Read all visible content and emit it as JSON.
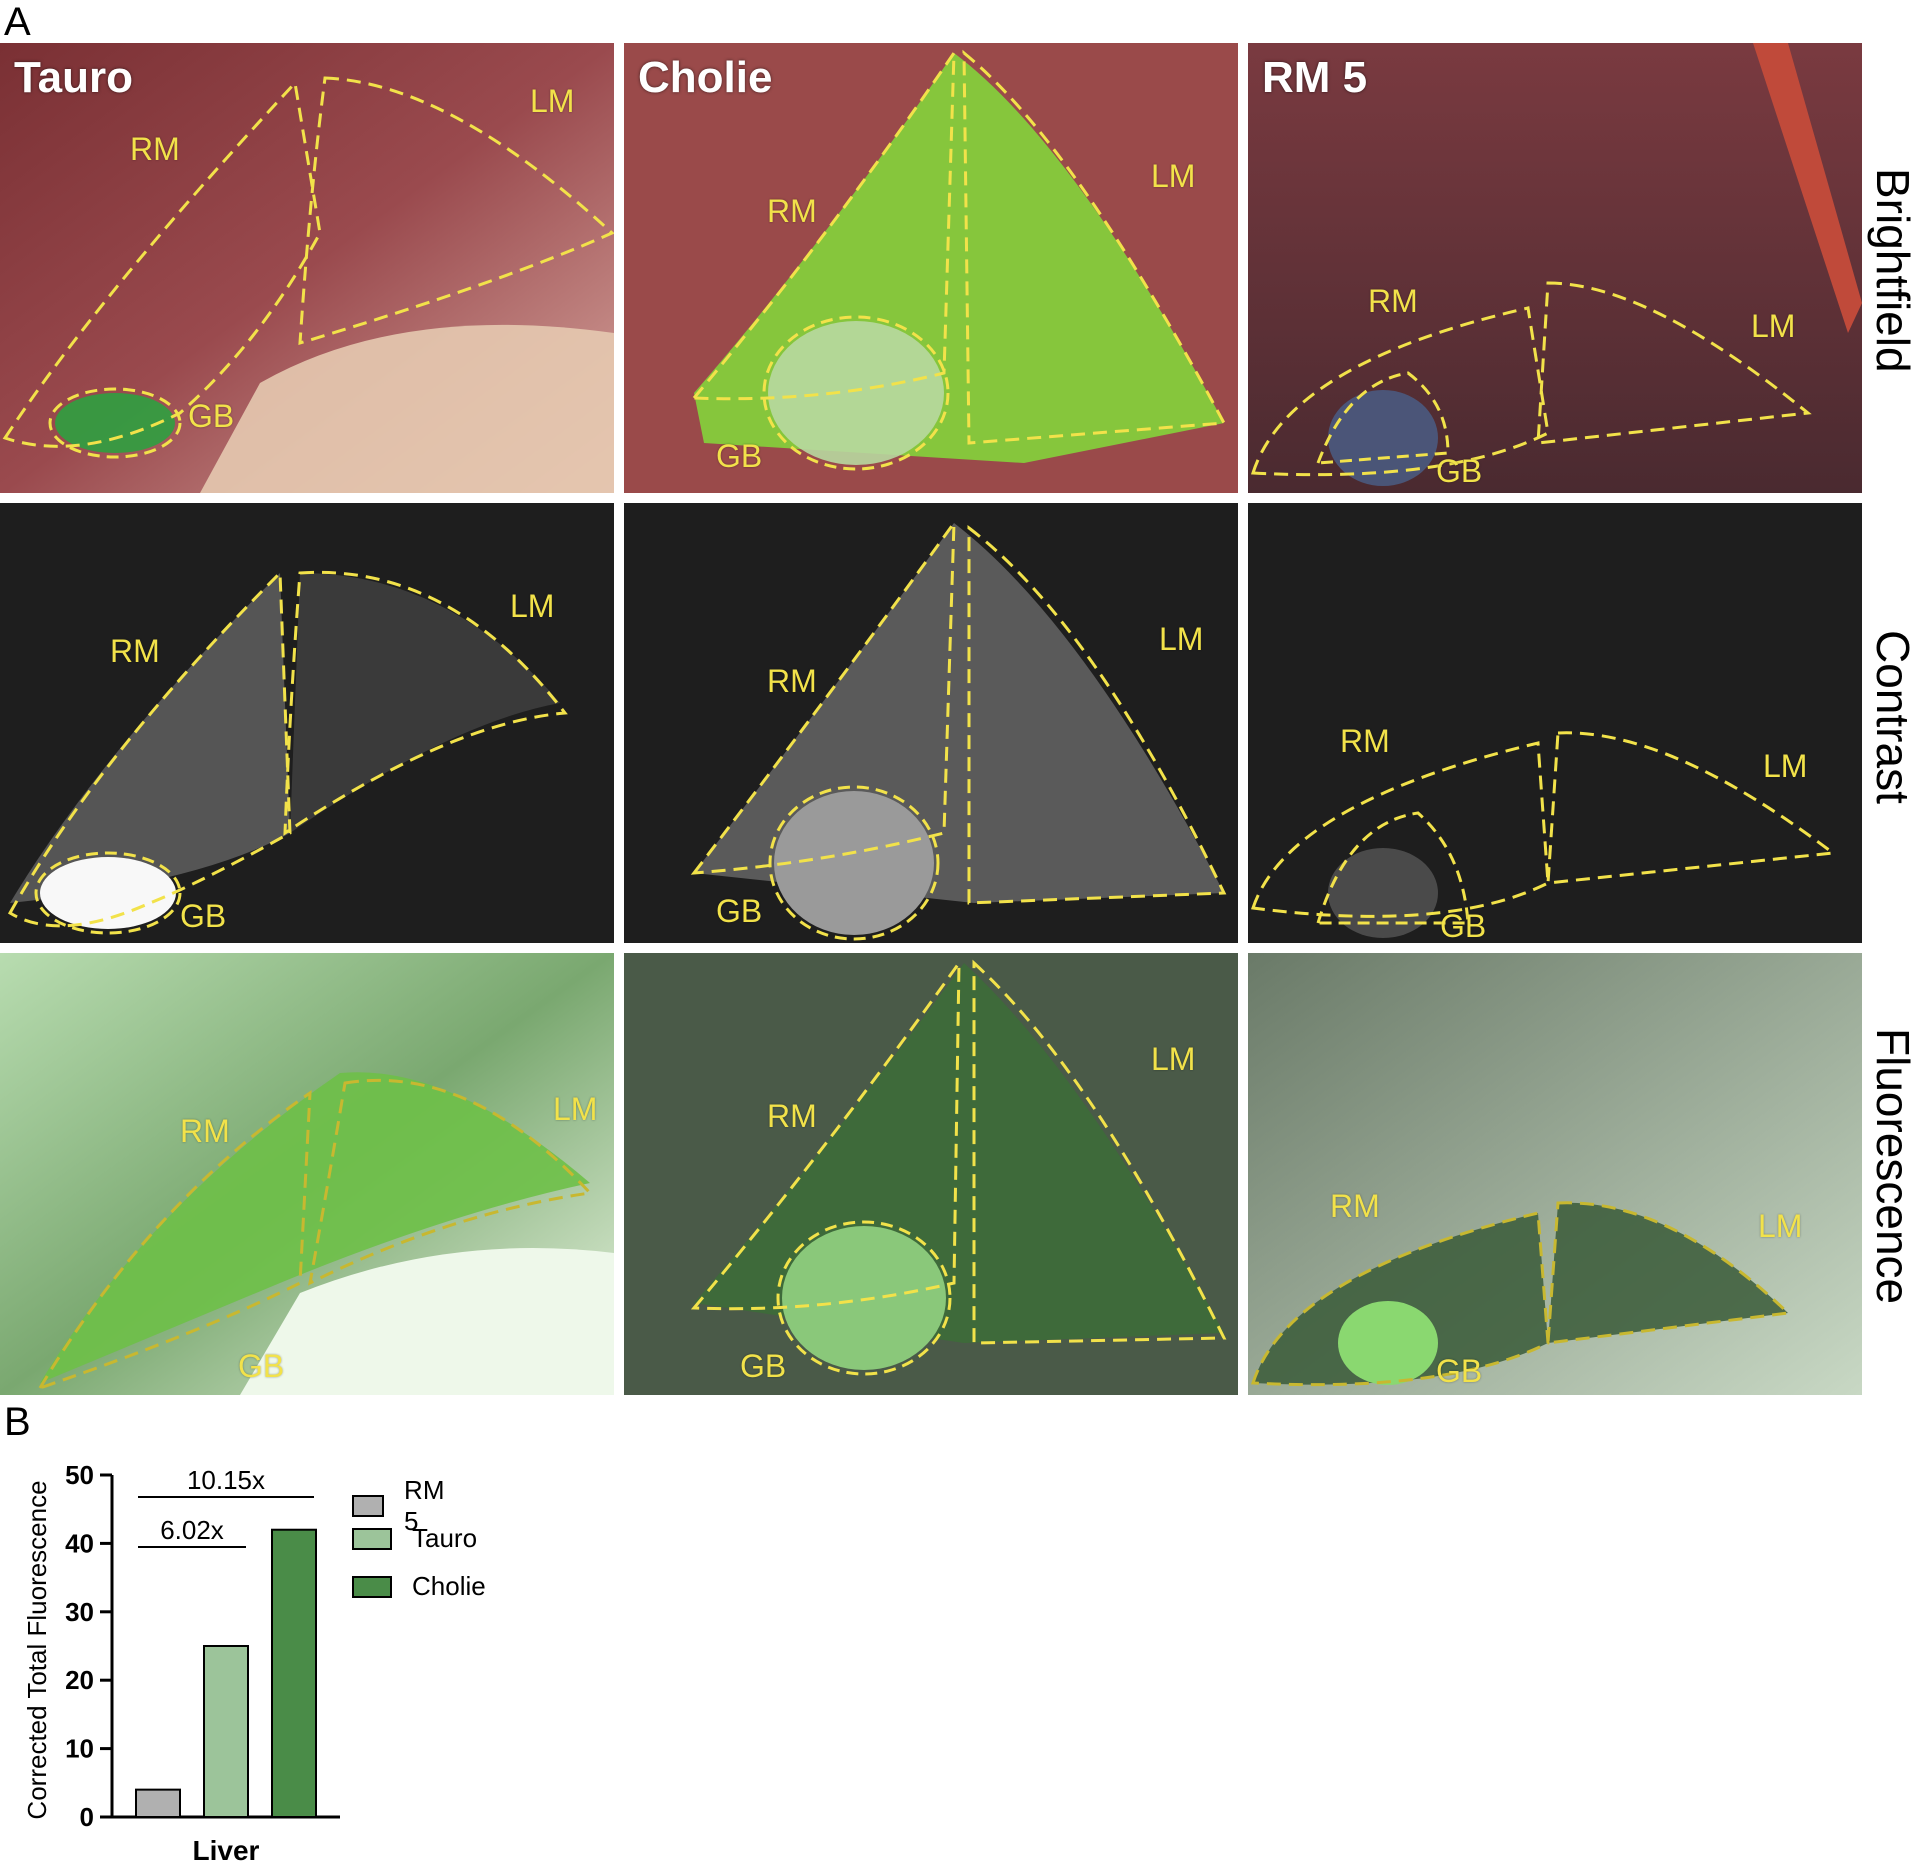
{
  "panel_a_label": "A",
  "panel_b_label": "B",
  "columns": [
    {
      "title": "Tauro"
    },
    {
      "title": "Cholie"
    },
    {
      "title": "RM 5"
    }
  ],
  "rows": [
    "Brightfield",
    "Contrast",
    "Fluorescence"
  ],
  "regions": {
    "rm": "RM",
    "lm": "LM",
    "gb": "GB"
  },
  "tile_colors": {
    "brightfield_tauro": "#8a3c40",
    "brightfield_cholie": "#7ec23a",
    "brightfield_rm5": "#6a3438",
    "contrast": "#202020",
    "fluor_tauro": "#8fc27a",
    "fluor_cholie": "#3d5a38",
    "fluor_rm5": "#8a9a88",
    "outline": "#f2e24a"
  },
  "chart_data": {
    "type": "bar",
    "ylabel": "Corrected Total Fluorescence",
    "xlabel": "Liver",
    "ylim": [
      0,
      50
    ],
    "yticks": [
      "0",
      "10",
      "20",
      "30",
      "40",
      "50"
    ],
    "series": [
      {
        "name": "RM 5",
        "value": 4,
        "color": "#b0b0b0"
      },
      {
        "name": "Tauro",
        "value": 25,
        "color": "#9cc49a"
      },
      {
        "name": "Cholie",
        "value": 42,
        "color": "#4a8c48"
      }
    ],
    "annotations": [
      {
        "text": "10.15x",
        "from": "RM 5",
        "to": "Cholie"
      },
      {
        "text": "6.02x",
        "from": "RM 5",
        "to": "Tauro"
      }
    ]
  }
}
